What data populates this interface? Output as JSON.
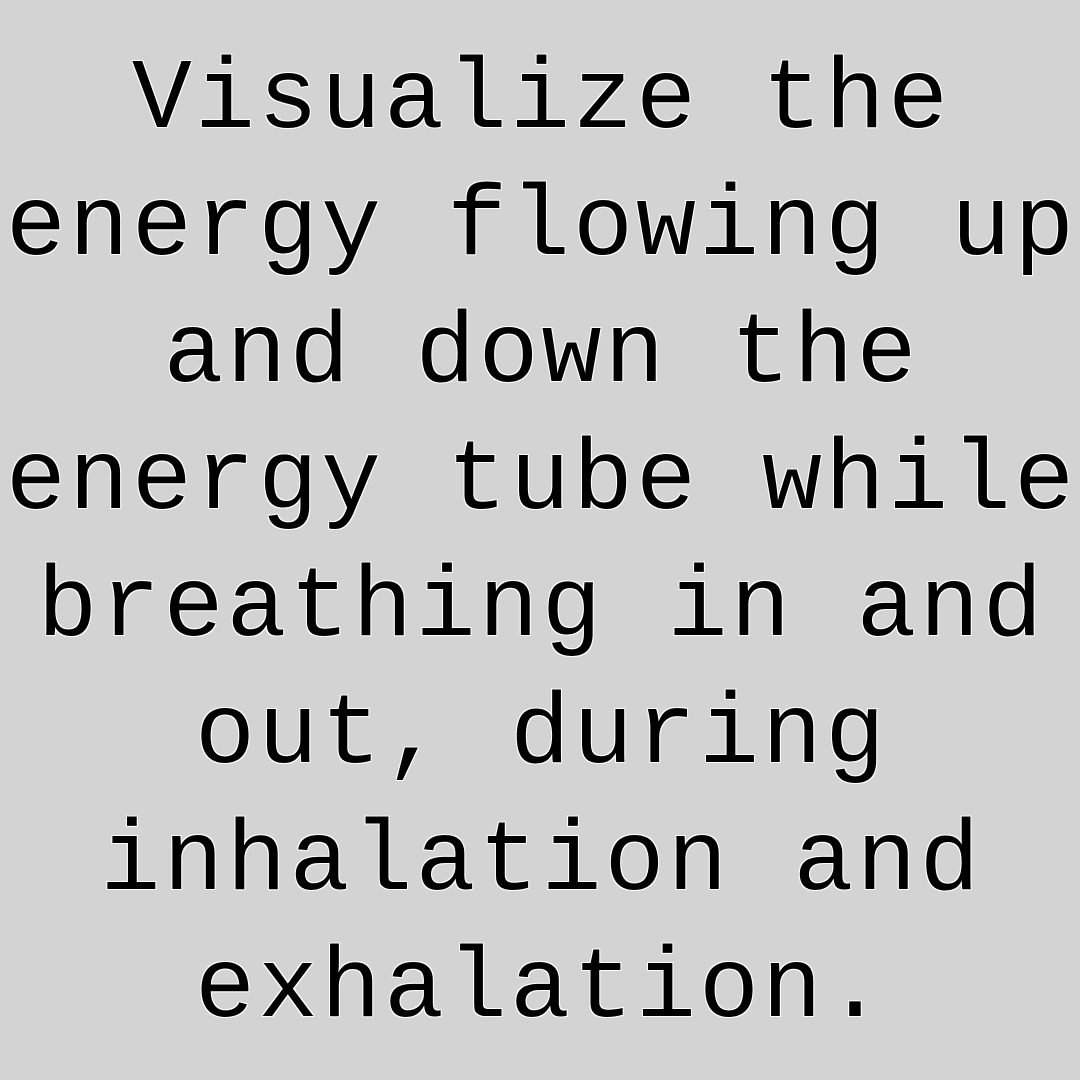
{
  "lines": [
    "Visualize the",
    "energy flowing up",
    "and down the",
    "energy tube while",
    "breathing in and",
    "out, during",
    "inhalation and",
    "exhalation."
  ]
}
